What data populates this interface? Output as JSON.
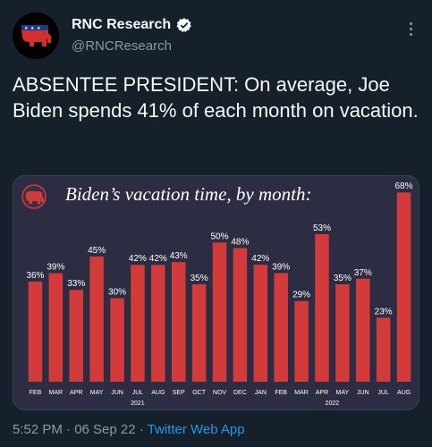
{
  "account": {
    "name": "RNC Research",
    "handle": "@RNCResearch"
  },
  "tweet": {
    "text": "ABSENTEE PRESIDENT: On average, Joe Biden spends 41% of each month on vacation."
  },
  "footer": {
    "timestamp": "5:52 PM · 06 Sep 22 · ",
    "source": "Twitter Web App"
  },
  "colors": {
    "background": "#15202b",
    "bar": "#d33a3a",
    "chart_bg": "#2c2d43",
    "link": "#1d9bf0"
  },
  "chart_data": {
    "type": "bar",
    "title": "Biden’s vacation time, by month:",
    "categories": [
      "FEB",
      "MAR",
      "APR",
      "MAY",
      "JUN",
      "JUL",
      "AUG",
      "SEP",
      "OCT",
      "NOV",
      "DEC",
      "JAN",
      "FEB",
      "MAR",
      "APR",
      "MAY",
      "JUN",
      "JUL",
      "AUG"
    ],
    "values": [
      36,
      39,
      33,
      45,
      30,
      42,
      42,
      43,
      35,
      50,
      48,
      42,
      39,
      29,
      53,
      35,
      37,
      23,
      68
    ],
    "value_labels": [
      "36%",
      "39%",
      "33%",
      "45%",
      "30%",
      "42%",
      "42%",
      "43%",
      "35%",
      "50%",
      "48%",
      "42%",
      "39%",
      "29%",
      "53%",
      "35%",
      "37%",
      "23%",
      "68%"
    ],
    "year_labels": [
      {
        "label": "2021",
        "start_index": 0,
        "end_index": 10
      },
      {
        "label": "2022",
        "start_index": 11,
        "end_index": 18
      }
    ],
    "ylim": [
      0,
      70
    ],
    "grid": false,
    "legend": "none"
  }
}
